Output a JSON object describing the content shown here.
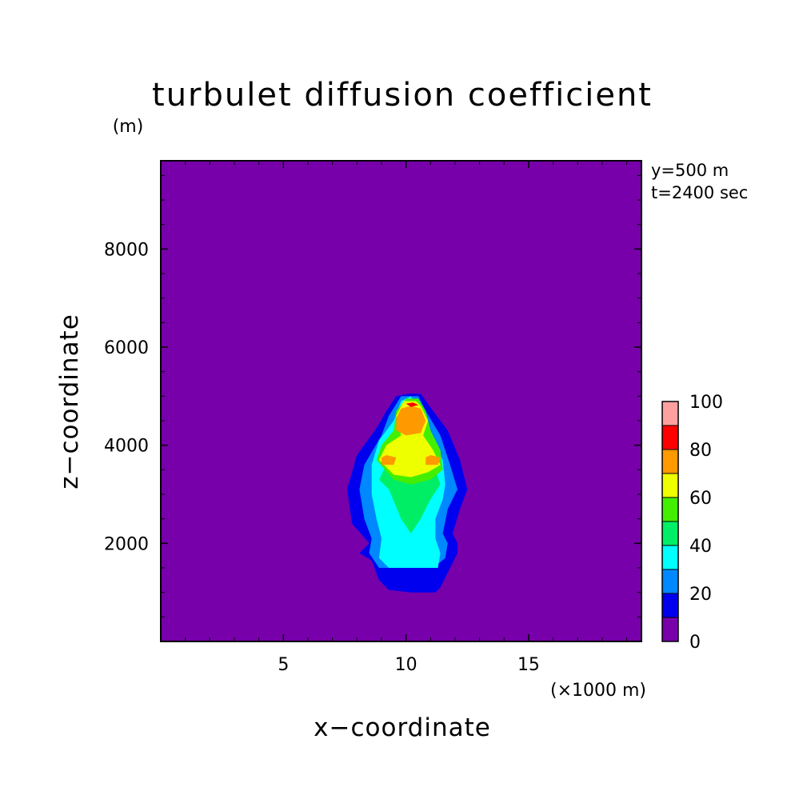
{
  "chart_data": {
    "type": "heatmap",
    "title": "turbulet diffusion coefficient",
    "xlabel": "x−coordinate",
    "ylabel": "z−coordinate",
    "x_unit": "(×1000 m)",
    "y_unit": "(m)",
    "annotations": [
      "y=500 m",
      "t=2400 sec"
    ],
    "xlim": [
      0,
      19.6
    ],
    "ylim": [
      0,
      9800
    ],
    "x_ticks": [
      5,
      10,
      15
    ],
    "x_tick_labels": [
      "5",
      "10",
      "15"
    ],
    "y_ticks": [
      2000,
      4000,
      6000,
      8000
    ],
    "y_tick_labels": [
      "2000",
      "4000",
      "6000",
      "8000"
    ],
    "grid": false,
    "colorbar": {
      "levels": [
        0,
        10,
        20,
        30,
        40,
        50,
        60,
        70,
        80,
        90,
        100
      ],
      "labels": [
        "0",
        "20",
        "40",
        "60",
        "80",
        "100"
      ],
      "colors": [
        "#7700aa",
        "#0000ee",
        "#0088ff",
        "#00ffff",
        "#00ee66",
        "#44ee00",
        "#eeff00",
        "#ff9900",
        "#ff0000",
        "#ffa0a0"
      ]
    },
    "regions": [
      {
        "min_value": 10,
        "color": "#0000ee",
        "outline": [
          [
            8.1,
            1800
          ],
          [
            8.6,
            1650
          ],
          [
            8.9,
            1250
          ],
          [
            9.3,
            1050
          ],
          [
            10.2,
            1000
          ],
          [
            11.2,
            1000
          ],
          [
            11.4,
            1100
          ],
          [
            11.8,
            1500
          ],
          [
            12.1,
            1800
          ],
          [
            12.1,
            2000
          ],
          [
            11.9,
            2200
          ],
          [
            12.2,
            2700
          ],
          [
            12.5,
            3100
          ],
          [
            12.2,
            3700
          ],
          [
            11.7,
            4300
          ],
          [
            11.1,
            4700
          ],
          [
            10.6,
            5050
          ],
          [
            10.1,
            5050
          ],
          [
            9.6,
            5000
          ],
          [
            9.2,
            4700
          ],
          [
            8.8,
            4350
          ],
          [
            8.0,
            3800
          ],
          [
            7.6,
            3100
          ],
          [
            7.8,
            2400
          ],
          [
            8.5,
            2000
          ]
        ]
      },
      {
        "min_value": 20,
        "color": "#0088ff",
        "outline": [
          [
            8.5,
            1800
          ],
          [
            8.9,
            1500
          ],
          [
            9.6,
            1500
          ],
          [
            10.5,
            1520
          ],
          [
            11.1,
            1500
          ],
          [
            11.6,
            1700
          ],
          [
            11.7,
            2000
          ],
          [
            11.5,
            2200
          ],
          [
            11.7,
            2700
          ],
          [
            12.1,
            3100
          ],
          [
            11.8,
            3600
          ],
          [
            11.4,
            4200
          ],
          [
            10.8,
            4700
          ],
          [
            10.5,
            5000
          ],
          [
            9.8,
            5000
          ],
          [
            9.3,
            4600
          ],
          [
            9.0,
            4200
          ],
          [
            8.3,
            3600
          ],
          [
            8.1,
            3100
          ],
          [
            8.3,
            2500
          ],
          [
            8.6,
            2100
          ]
        ]
      },
      {
        "min_value": 30,
        "color": "#00ffff",
        "outline": [
          [
            8.9,
            1700
          ],
          [
            9.3,
            1500
          ],
          [
            10.3,
            1500
          ],
          [
            11.3,
            1500
          ],
          [
            11.4,
            1800
          ],
          [
            11.2,
            2100
          ],
          [
            11.2,
            2500
          ],
          [
            11.5,
            2900
          ],
          [
            11.6,
            3200
          ],
          [
            11.5,
            3700
          ],
          [
            11.0,
            4200
          ],
          [
            10.5,
            4600
          ],
          [
            10.2,
            5000
          ],
          [
            9.8,
            4900
          ],
          [
            9.5,
            4500
          ],
          [
            8.9,
            4100
          ],
          [
            8.6,
            3600
          ],
          [
            8.6,
            3000
          ],
          [
            8.8,
            2500
          ],
          [
            9.0,
            2100
          ]
        ]
      },
      {
        "min_value": 40,
        "color": "#00ee66",
        "outline": [
          [
            9.3,
            3100
          ],
          [
            9.8,
            2500
          ],
          [
            10.2,
            2200
          ],
          [
            10.6,
            2500
          ],
          [
            11.0,
            2900
          ],
          [
            11.4,
            3200
          ],
          [
            11.2,
            3500
          ],
          [
            10.6,
            3700
          ],
          [
            10.0,
            3800
          ],
          [
            9.2,
            3600
          ],
          [
            8.9,
            3300
          ]
        ]
      },
      {
        "min_value": 50,
        "color": "#44ee00",
        "outline": [
          [
            8.8,
            3700
          ],
          [
            9.5,
            3300
          ],
          [
            10.2,
            3200
          ],
          [
            11.0,
            3300
          ],
          [
            11.5,
            3500
          ],
          [
            11.4,
            3900
          ],
          [
            11.0,
            4300
          ],
          [
            10.8,
            4700
          ],
          [
            10.5,
            4950
          ],
          [
            10.0,
            4950
          ],
          [
            9.6,
            4700
          ],
          [
            9.5,
            4300
          ],
          [
            9.0,
            4000
          ]
        ]
      },
      {
        "min_value": 60,
        "color": "#eeff00",
        "outline": [
          [
            8.9,
            3700
          ],
          [
            9.5,
            3400
          ],
          [
            10.2,
            3350
          ],
          [
            10.9,
            3450
          ],
          [
            11.4,
            3600
          ],
          [
            11.1,
            3900
          ],
          [
            10.7,
            4200
          ],
          [
            10.9,
            4500
          ],
          [
            10.6,
            4800
          ],
          [
            10.4,
            4900
          ],
          [
            9.9,
            4900
          ],
          [
            9.6,
            4600
          ],
          [
            9.8,
            4200
          ],
          [
            9.2,
            4000
          ]
        ]
      },
      {
        "min_value": 70,
        "color": "#ff9900",
        "outline": [
          [
            9.6,
            4300
          ],
          [
            10.0,
            4200
          ],
          [
            10.6,
            4250
          ],
          [
            10.8,
            4500
          ],
          [
            10.6,
            4750
          ],
          [
            10.2,
            4800
          ],
          [
            9.8,
            4750
          ],
          [
            9.6,
            4550
          ]
        ]
      },
      {
        "min_value": 70,
        "color": "#ff9900",
        "outline": [
          [
            9.0,
            3600
          ],
          [
            9.5,
            3600
          ],
          [
            9.6,
            3750
          ],
          [
            9.2,
            3800
          ],
          [
            9.0,
            3750
          ]
        ]
      },
      {
        "min_value": 70,
        "color": "#ff9900",
        "outline": [
          [
            10.8,
            3600
          ],
          [
            11.3,
            3600
          ],
          [
            11.4,
            3750
          ],
          [
            11.0,
            3800
          ],
          [
            10.8,
            3750
          ]
        ]
      },
      {
        "min_value": 80,
        "color": "#ff0000",
        "outline": [
          [
            10.0,
            4850
          ],
          [
            10.2,
            4780
          ],
          [
            10.5,
            4820
          ],
          [
            10.3,
            4870
          ]
        ]
      }
    ]
  }
}
